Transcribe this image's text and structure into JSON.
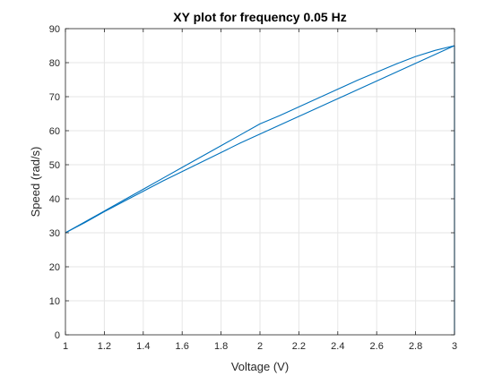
{
  "chart_data": {
    "type": "line",
    "title": "XY plot for frequency 0.05 Hz",
    "xlabel": "Voltage (V)",
    "ylabel": "Speed (rad/s)",
    "xlim": [
      1,
      3
    ],
    "ylim": [
      0,
      90
    ],
    "xticks": [
      1,
      1.2,
      1.4,
      1.6,
      1.8,
      2,
      2.2,
      2.4,
      2.6,
      2.8,
      3
    ],
    "yticks": [
      0,
      10,
      20,
      30,
      40,
      50,
      60,
      70,
      80,
      90
    ],
    "xtick_labels": [
      "1",
      "1.2",
      "1.4",
      "1.6",
      "1.8",
      "2",
      "2.2",
      "2.4",
      "2.6",
      "2.8",
      "3"
    ],
    "ytick_labels": [
      "0",
      "10",
      "20",
      "30",
      "40",
      "50",
      "60",
      "70",
      "80",
      "90"
    ],
    "grid": true,
    "color": "#0072BD",
    "series": [
      {
        "x": [
          1.0,
          1.1,
          1.2,
          1.3,
          1.4,
          1.5,
          1.6,
          1.7,
          1.8,
          1.9,
          2.0,
          2.1,
          2.2,
          2.3,
          2.4,
          2.5,
          2.6,
          2.7,
          2.8,
          2.9,
          3.0
        ],
        "y": [
          30,
          33.2,
          36.4,
          39.6,
          42.8,
          46.0,
          49.2,
          52.4,
          55.6,
          58.8,
          62.0,
          64.4,
          67.0,
          69.6,
          72.2,
          74.8,
          77.2,
          79.6,
          81.8,
          83.6,
          85
        ]
      },
      {
        "x": [
          3.0,
          2.9,
          2.8,
          2.7,
          2.6,
          2.5,
          2.4,
          2.3,
          2.2,
          2.1,
          2.0,
          1.9,
          1.8,
          1.7,
          1.6,
          1.5,
          1.4,
          1.3,
          1.2,
          1.1,
          1.0
        ],
        "y": [
          85,
          82.4,
          79.8,
          77.2,
          74.6,
          72.0,
          69.4,
          66.8,
          64.2,
          61.6,
          59.0,
          56.4,
          53.6,
          50.8,
          48.0,
          45.2,
          42.2,
          39.2,
          36.2,
          33.0,
          30
        ]
      },
      {
        "x": [
          3.0,
          3.0,
          3.0
        ],
        "y": [
          85,
          40,
          0
        ]
      }
    ]
  }
}
